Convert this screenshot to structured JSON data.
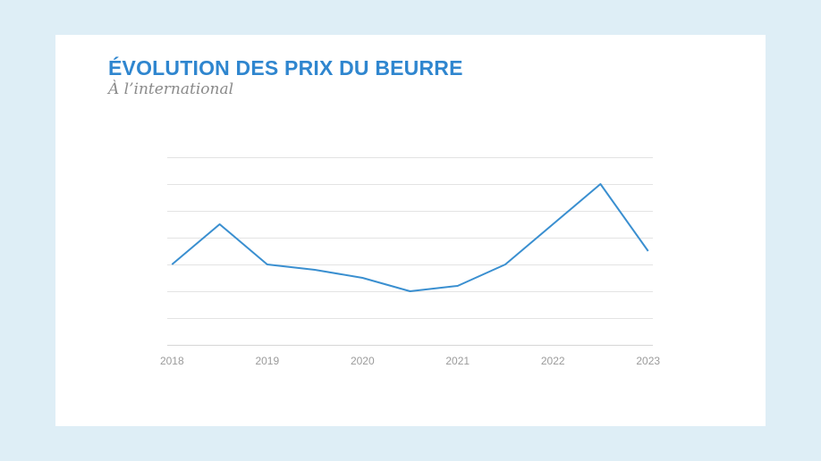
{
  "colors": {
    "background": "#deeef6",
    "card": "#ffffff",
    "title": "#2f86cf",
    "line": "#3a8fd0",
    "grid": "#e3e3e3",
    "tick_text": "#9b9b9b"
  },
  "chart_data": {
    "type": "line",
    "title": "ÉVOLUTION DES PRIX DU BEURRE",
    "subtitle": "À l’international",
    "xlabel": "",
    "ylabel": "",
    "categories": [
      "2018",
      "2019",
      "2020",
      "2021",
      "2022",
      "2023"
    ],
    "x": [
      2018,
      2018.5,
      2019,
      2019.5,
      2020,
      2020.5,
      2021,
      2021.5,
      2022,
      2022.5,
      2023
    ],
    "series": [
      {
        "values": [
          3,
          4.5,
          3,
          2.8,
          2.5,
          2,
          2.2,
          3,
          4.5,
          6,
          3.5
        ]
      }
    ],
    "ylim": [
      0,
      7
    ],
    "ytick_count": 8,
    "grid": true,
    "y_tick_labels_visible": false,
    "legend": "none"
  }
}
